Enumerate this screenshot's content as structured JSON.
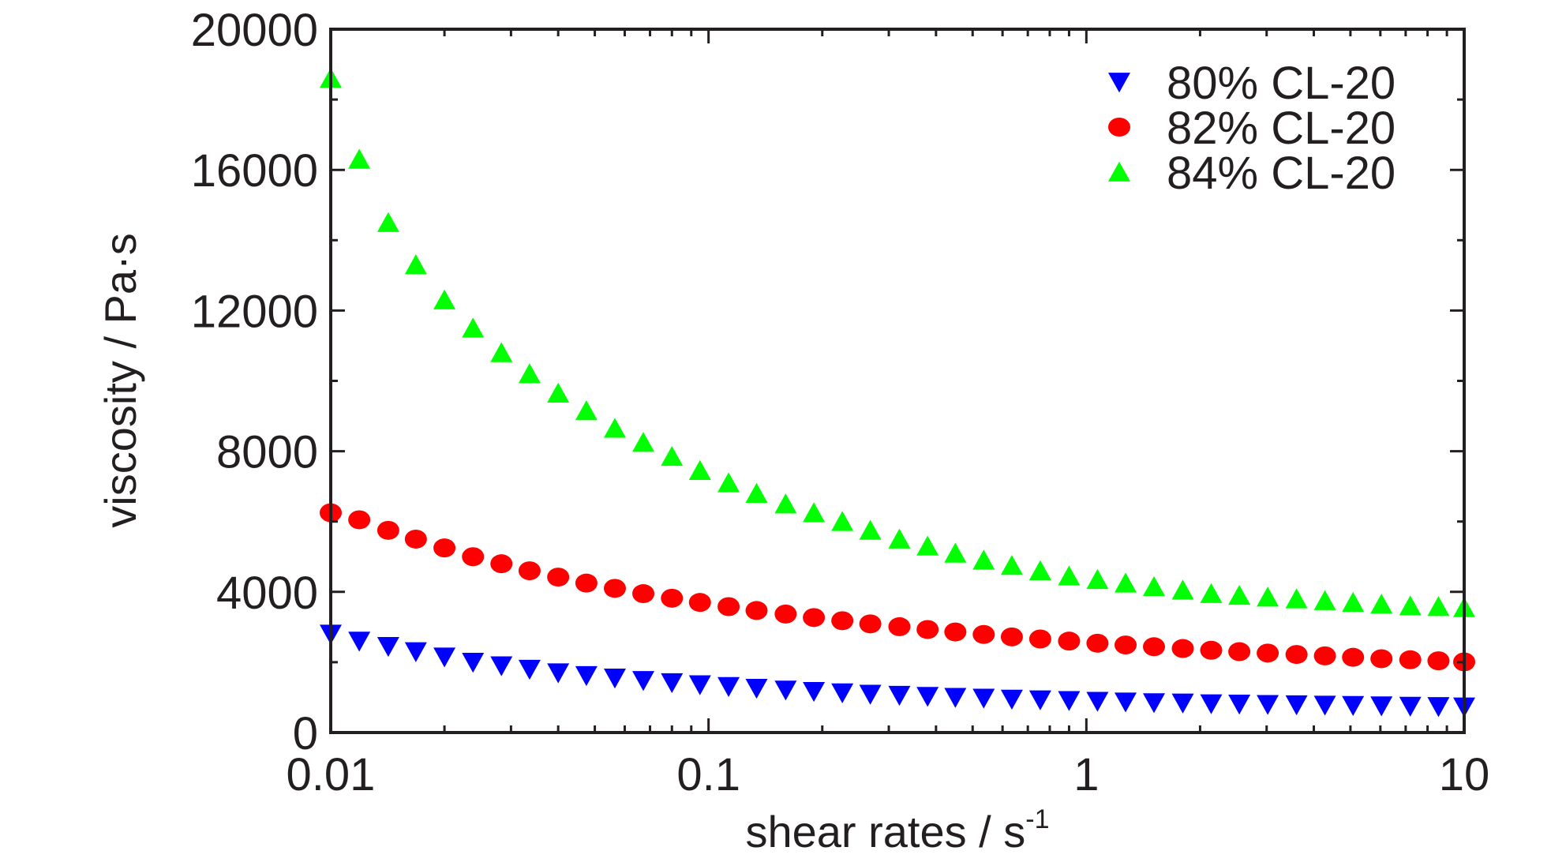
{
  "chart_data": {
    "type": "scatter",
    "xlabel": "shear rates / s",
    "xlabel_superscript": "-1",
    "ylabel": "viscosity / Pa·s",
    "x_scale": "log",
    "xlim": [
      0.01,
      10
    ],
    "ylim": [
      0,
      20000
    ],
    "x_ticks": [
      "0.01",
      "0.1",
      "1",
      "10"
    ],
    "y_ticks": [
      "0",
      "4000",
      "8000",
      "12000",
      "16000",
      "20000"
    ],
    "grid": false,
    "legend_position": "top-right",
    "x": [
      0.01,
      0.0119,
      0.0142,
      0.0168,
      0.02,
      0.0238,
      0.0283,
      0.0336,
      0.04,
      0.0475,
      0.0565,
      0.0672,
      0.08,
      0.0949,
      0.113,
      0.134,
      0.16,
      0.19,
      0.226,
      0.268,
      0.32,
      0.38,
      0.45,
      0.535,
      0.635,
      0.755,
      0.9,
      1.07,
      1.27,
      1.51,
      1.8,
      2.14,
      2.54,
      3.02,
      3.6,
      4.28,
      5.08,
      6.04,
      7.2,
      8.55,
      10.0
    ],
    "series": [
      {
        "name": "80% CL-20",
        "marker": "triangle-down",
        "color": "#0000ff",
        "values": [
          2800,
          2600,
          2450,
          2300,
          2150,
          2000,
          1900,
          1800,
          1700,
          1620,
          1550,
          1480,
          1420,
          1360,
          1310,
          1260,
          1210,
          1170,
          1130,
          1090,
          1060,
          1030,
          1000,
          980,
          950,
          930,
          910,
          890,
          870,
          850,
          840,
          820,
          810,
          800,
          790,
          780,
          770,
          760,
          750,
          740,
          730
        ]
      },
      {
        "name": "82% CL-20",
        "marker": "circle",
        "color": "#ff0000",
        "values": [
          6250,
          6050,
          5750,
          5500,
          5250,
          5000,
          4800,
          4600,
          4420,
          4250,
          4100,
          3950,
          3820,
          3700,
          3580,
          3470,
          3370,
          3270,
          3180,
          3090,
          3010,
          2930,
          2860,
          2790,
          2720,
          2660,
          2600,
          2540,
          2490,
          2440,
          2390,
          2340,
          2300,
          2260,
          2220,
          2180,
          2140,
          2100,
          2070,
          2040,
          2010
        ]
      },
      {
        "name": "84% CL-20",
        "marker": "triangle-up",
        "color": "#00ff00",
        "values": [
          18600,
          16300,
          14500,
          13300,
          12300,
          11500,
          10800,
          10200,
          9650,
          9150,
          8650,
          8250,
          7850,
          7450,
          7100,
          6800,
          6500,
          6250,
          6000,
          5750,
          5500,
          5300,
          5100,
          4900,
          4750,
          4600,
          4450,
          4350,
          4250,
          4150,
          4050,
          3950,
          3900,
          3850,
          3800,
          3750,
          3700,
          3650,
          3600,
          3580,
          3550
        ]
      }
    ]
  }
}
